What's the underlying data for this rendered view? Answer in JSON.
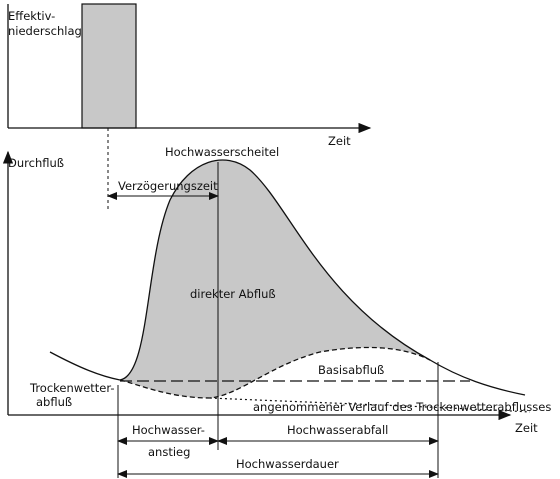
{
  "top_panel": {
    "y_label": [
      "Effektiv-",
      "niederschlag"
    ],
    "x_label": "Zeit"
  },
  "bottom_panel": {
    "y_label": "Durchfluß",
    "x_label": "Zeit",
    "peak": "Hochwasserscheitel",
    "delay": "Verzögerungszeit",
    "direct_runoff": "direkter Abfluß",
    "base_flow": "Basisabfluß",
    "dry_weather_flow": [
      "Trockenwetter-",
      "abfluß"
    ],
    "assumed_trend": "angenommener Verlauf des Trockenwetterabflusses",
    "rise": [
      "Hochwasser-",
      "anstieg"
    ],
    "fall": "Hochwasserabfall",
    "duration": "Hochwasserdauer"
  }
}
